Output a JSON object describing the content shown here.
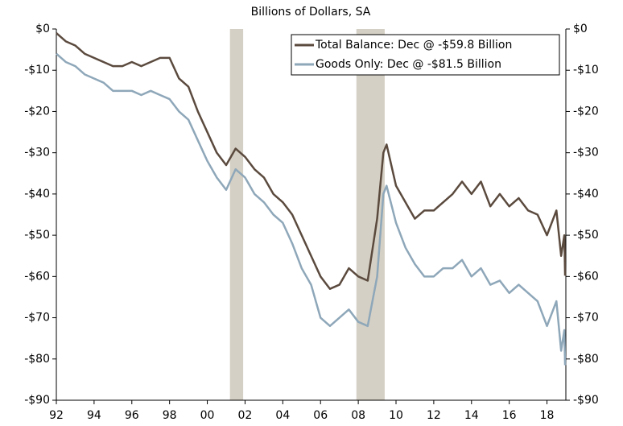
{
  "chart_data": {
    "type": "line",
    "title": "Billions of Dollars, SA",
    "x": [
      1992,
      1992.5,
      1993,
      1993.5,
      1994,
      1994.5,
      1995,
      1995.5,
      1996,
      1996.5,
      1997,
      1997.5,
      1998,
      1998.5,
      1999,
      1999.5,
      2000,
      2000.5,
      2001,
      2001.5,
      2002,
      2002.5,
      2003,
      2003.5,
      2004,
      2004.5,
      2005,
      2005.5,
      2006,
      2006.5,
      2007,
      2007.5,
      2008,
      2008.5,
      2009,
      2009.33,
      2009.5,
      2010,
      2010.5,
      2011,
      2011.5,
      2012,
      2012.5,
      2013,
      2013.5,
      2014,
      2014.5,
      2015,
      2015.5,
      2016,
      2016.5,
      2017,
      2017.5,
      2018,
      2018.5,
      2018.75,
      2018.92,
      2018.96
    ],
    "series": [
      {
        "name": "Total Balance: Dec @ -$59.8 Billion",
        "color": "#5b4a3e",
        "values": [
          -1,
          -3,
          -4,
          -6,
          -7,
          -8,
          -9,
          -9,
          -8,
          -9,
          -8,
          -7,
          -7,
          -12,
          -14,
          -20,
          -25,
          -30,
          -33,
          -29,
          -31,
          -34,
          -36,
          -40,
          -42,
          -45,
          -50,
          -55,
          -60,
          -63,
          -62,
          -58,
          -60,
          -61,
          -46,
          -30,
          -28,
          -38,
          -42,
          -46,
          -44,
          -44,
          -42,
          -40,
          -37,
          -40,
          -37,
          -43,
          -40,
          -43,
          -41,
          -44,
          -45,
          -50,
          -44,
          -55,
          -50,
          -59.8
        ]
      },
      {
        "name": "Goods Only: Dec @ -$81.5 Billion",
        "color": "#8ea7b9",
        "values": [
          -6,
          -8,
          -9,
          -11,
          -12,
          -13,
          -15,
          -15,
          -15,
          -16,
          -15,
          -16,
          -17,
          -20,
          -22,
          -27,
          -32,
          -36,
          -39,
          -34,
          -36,
          -40,
          -42,
          -45,
          -47,
          -52,
          -58,
          -62,
          -70,
          -72,
          -70,
          -68,
          -71,
          -72,
          -60,
          -40,
          -38,
          -47,
          -53,
          -57,
          -60,
          -60,
          -58,
          -58,
          -56,
          -60,
          -58,
          -62,
          -61,
          -64,
          -62,
          -64,
          -66,
          -72,
          -66,
          -78,
          -73,
          -81.5
        ]
      }
    ],
    "shaded_periods": [
      [
        2001.2,
        2001.9
      ],
      [
        2007.9,
        2009.4
      ]
    ],
    "shade_color": "#d5d0c5",
    "xlim": [
      1992,
      2019
    ],
    "xticks": [
      {
        "value": 1992,
        "label": "92"
      },
      {
        "value": 1994,
        "label": "94"
      },
      {
        "value": 1996,
        "label": "96"
      },
      {
        "value": 1998,
        "label": "98"
      },
      {
        "value": 2000,
        "label": "00"
      },
      {
        "value": 2002,
        "label": "02"
      },
      {
        "value": 2004,
        "label": "04"
      },
      {
        "value": 2006,
        "label": "06"
      },
      {
        "value": 2008,
        "label": "08"
      },
      {
        "value": 2010,
        "label": "10"
      },
      {
        "value": 2012,
        "label": "12"
      },
      {
        "value": 2014,
        "label": "14"
      },
      {
        "value": 2016,
        "label": "16"
      },
      {
        "value": 2018,
        "label": "18"
      }
    ],
    "ylim": [
      -90,
      0
    ],
    "yticks": [
      {
        "value": 0,
        "label": "$0"
      },
      {
        "value": -10,
        "label": "-$10"
      },
      {
        "value": -20,
        "label": "-$20"
      },
      {
        "value": -30,
        "label": "-$30"
      },
      {
        "value": -40,
        "label": "-$40"
      },
      {
        "value": -50,
        "label": "-$50"
      },
      {
        "value": -60,
        "label": "-$60"
      },
      {
        "value": -70,
        "label": "-$70"
      },
      {
        "value": -80,
        "label": "-$80"
      },
      {
        "value": -90,
        "label": "-$90"
      }
    ],
    "legend": "top-right"
  }
}
